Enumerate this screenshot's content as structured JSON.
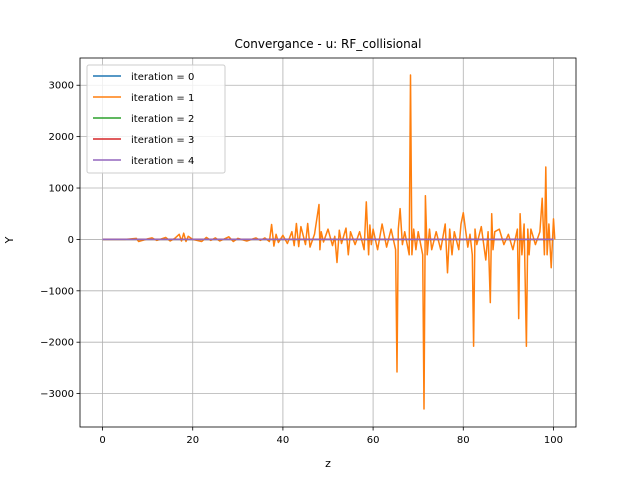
{
  "chart_data": {
    "type": "line",
    "title": "Convergance  - u: RF_collisional",
    "xlabel": "z",
    "ylabel": "Y",
    "xlim": [
      -5,
      105
    ],
    "ylim": [
      -3650,
      3530
    ],
    "xticks": [
      0,
      20,
      40,
      60,
      80,
      100
    ],
    "yticks": [
      -3000,
      -2000,
      -1000,
      0,
      1000,
      2000,
      3000
    ],
    "xtick_labels": [
      "0",
      "20",
      "40",
      "60",
      "80",
      "100"
    ],
    "ytick_labels": [
      "−3000",
      "−2000",
      "−1000",
      "0",
      "1000",
      "2000",
      "3000"
    ],
    "grid": true,
    "legend_position": "top-left",
    "series": [
      {
        "name": "iteration = 0",
        "color": "#1f77b4",
        "x": [
          0,
          100
        ],
        "y": [
          0,
          0
        ]
      },
      {
        "name": "iteration = 1",
        "color": "#ff7f0e",
        "x": [
          0,
          5,
          7.5,
          8,
          10,
          11,
          12,
          14,
          15,
          16,
          17,
          17.5,
          18,
          18.5,
          19,
          20,
          22,
          23,
          24,
          25,
          26,
          28,
          29,
          30,
          32,
          34,
          35,
          36,
          37,
          37.5,
          38,
          38.5,
          39,
          40,
          41,
          42,
          42.5,
          43,
          43.5,
          44,
          45,
          45.5,
          46,
          47,
          48,
          48.2,
          48.5,
          49,
          50,
          51,
          51.5,
          52,
          52.5,
          53,
          54,
          54.5,
          55,
          56,
          57,
          58,
          58.5,
          59,
          59.3,
          59.6,
          60,
          61,
          62,
          63,
          64,
          65,
          65.3,
          65.6,
          66,
          66.5,
          67,
          68,
          68.3,
          68.6,
          69,
          69.5,
          70,
          71,
          71.3,
          71.6,
          72,
          72.5,
          73,
          74,
          75,
          76,
          76.5,
          77,
          77.5,
          78,
          79,
          79.5,
          80,
          81,
          81.5,
          82,
          82.3,
          82.6,
          83,
          84,
          85,
          85.5,
          86,
          86.3,
          86.6,
          87,
          88,
          89,
          90,
          91,
          92,
          92.3,
          92.6,
          93,
          93.5,
          94,
          94.3,
          94.6,
          95,
          96,
          97,
          97.5,
          98,
          98.3,
          98.6,
          99,
          99.5,
          100,
          100.3
        ],
        "y": [
          0,
          0,
          20,
          -40,
          10,
          30,
          -20,
          40,
          -30,
          20,
          100,
          -30,
          120,
          -40,
          60,
          0,
          -40,
          40,
          -20,
          30,
          -30,
          50,
          -40,
          20,
          -30,
          30,
          -20,
          30,
          -40,
          290,
          -130,
          100,
          -60,
          80,
          -80,
          150,
          -120,
          310,
          -140,
          250,
          -100,
          310,
          -150,
          100,
          680,
          -200,
          150,
          -50,
          200,
          -120,
          60,
          -450,
          180,
          -80,
          220,
          -300,
          150,
          -100,
          150,
          -200,
          730,
          -300,
          280,
          -100,
          200,
          -200,
          300,
          -150,
          200,
          -200,
          -2580,
          200,
          600,
          -100,
          150,
          -300,
          3200,
          -300,
          200,
          -200,
          150,
          -300,
          -3300,
          850,
          -300,
          200,
          -200,
          150,
          -200,
          300,
          -650,
          200,
          -300,
          150,
          -200,
          300,
          520,
          -150,
          100,
          -300,
          -2080,
          200,
          -100,
          250,
          -400,
          150,
          -1230,
          500,
          -200,
          150,
          200,
          -100,
          100,
          -200,
          200,
          -1540,
          500,
          -300,
          300,
          -2080,
          200,
          -300,
          200,
          -100,
          150,
          800,
          -300,
          1410,
          -300,
          300,
          -550,
          400,
          0
        ]
      },
      {
        "name": "iteration = 2",
        "color": "#2ca02c",
        "x": [
          0,
          100
        ],
        "y": [
          0,
          0
        ]
      },
      {
        "name": "iteration = 3",
        "color": "#d62728",
        "x": [
          0,
          100
        ],
        "y": [
          0,
          0
        ]
      },
      {
        "name": "iteration = 4",
        "color": "#9467bd",
        "x": [
          0,
          100
        ],
        "y": [
          0,
          0
        ]
      }
    ]
  }
}
